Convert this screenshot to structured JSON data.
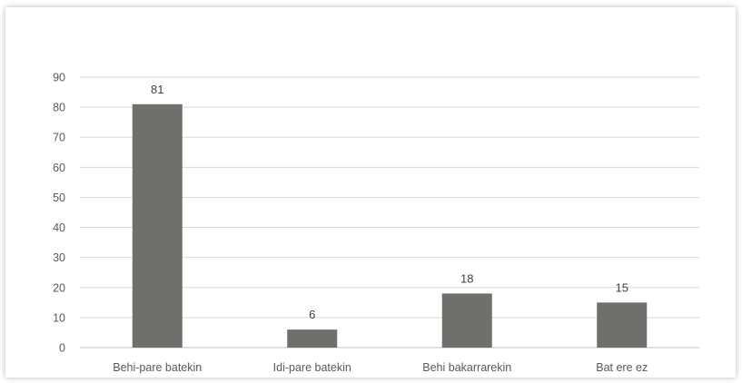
{
  "chart_data": {
    "type": "bar",
    "categories": [
      "Behi-pare batekin",
      "Idi-pare batekin",
      "Behi bakarrarekin",
      "Bat ere ez"
    ],
    "values": [
      81,
      6,
      18,
      15
    ],
    "title": "",
    "xlabel": "",
    "ylabel": "",
    "ylim": [
      0,
      90
    ],
    "yticks": [
      0,
      10,
      20,
      30,
      40,
      50,
      60,
      70,
      80,
      90
    ],
    "grid": true,
    "legend": "none",
    "data_labels": true
  },
  "colors": {
    "bar": "#6f6f6c",
    "grid": "#d9d9d9",
    "axis": "#bfbfbf"
  }
}
